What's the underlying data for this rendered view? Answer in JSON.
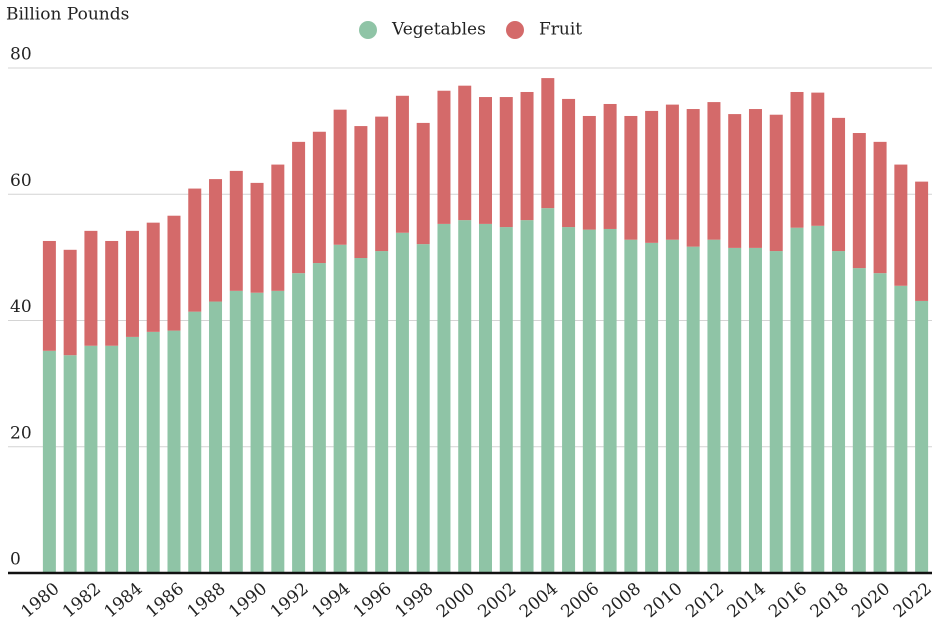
{
  "chart_data": {
    "type": "stacked_bar",
    "y_axis_label": "Billion Pounds",
    "categories": [
      "1980",
      null,
      "1982",
      null,
      "1984",
      null,
      "1986",
      null,
      "1988",
      null,
      "1990",
      null,
      "1992",
      null,
      "1994",
      null,
      "1996",
      null,
      "1998",
      null,
      "2000",
      null,
      "2002",
      null,
      "2004",
      null,
      "2006",
      null,
      "2008",
      null,
      "2010",
      null,
      "2012",
      null,
      "2014",
      null,
      "2016",
      null,
      "2018",
      null,
      "2020",
      null,
      "2022"
    ],
    "series": [
      {
        "name": "Vegetables",
        "color": "#8fc4a6",
        "values": [
          35.2,
          34.5,
          36.0,
          36.0,
          37.4,
          38.2,
          38.4,
          41.4,
          43.0,
          44.7,
          44.4,
          44.7,
          47.5,
          49.1,
          52.0,
          49.9,
          51.0,
          53.9,
          52.1,
          55.3,
          55.9,
          55.3,
          54.8,
          55.9,
          57.8,
          54.8,
          54.4,
          54.5,
          52.8,
          52.3,
          52.8,
          51.7,
          52.8,
          51.5,
          51.5,
          51.0,
          54.7,
          55.0,
          51.0,
          48.3,
          47.5,
          45.5,
          43.1
        ]
      },
      {
        "name": "Fruit",
        "color": "#d46a6a",
        "values": [
          17.4,
          16.7,
          18.2,
          16.6,
          16.8,
          17.3,
          18.2,
          19.5,
          19.4,
          19.0,
          17.4,
          20.0,
          20.8,
          20.8,
          21.4,
          20.9,
          21.3,
          21.7,
          19.2,
          21.1,
          21.3,
          20.1,
          20.6,
          20.3,
          20.6,
          20.3,
          18.0,
          19.8,
          19.6,
          20.9,
          21.4,
          21.8,
          21.8,
          21.2,
          22.0,
          21.6,
          21.5,
          21.1,
          21.1,
          21.4,
          20.8,
          19.2,
          18.9
        ]
      }
    ],
    "ylim": [
      0,
      80
    ],
    "yticks": [
      0,
      20,
      40,
      60,
      80
    ],
    "grid": true,
    "legend": "top"
  }
}
